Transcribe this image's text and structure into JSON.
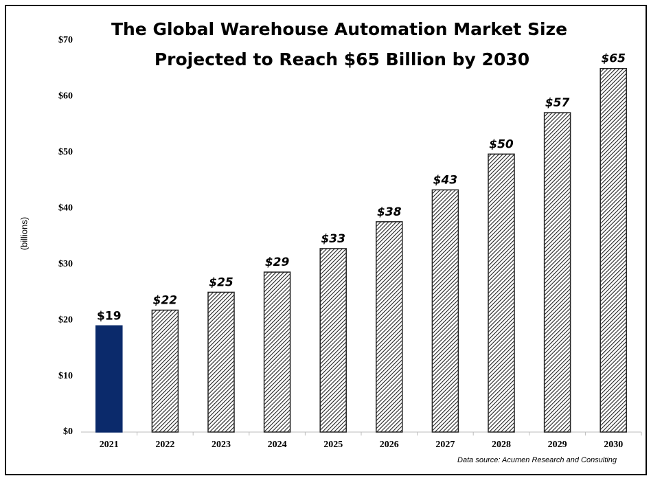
{
  "chart_data": {
    "type": "bar",
    "title": [
      "The Global Warehouse Automation Market Size",
      "Projected to Reach $65 Billion by 2030"
    ],
    "y_label": "(billions)",
    "source": "Data source:  Acumen Research and Consulting",
    "categories": [
      "2021",
      "2022",
      "2023",
      "2024",
      "2025",
      "2026",
      "2027",
      "2028",
      "2029",
      "2030"
    ],
    "values": [
      19,
      21.8,
      25,
      28.6,
      32.8,
      37.6,
      43.3,
      49.7,
      57.1,
      65
    ],
    "value_labels": [
      "$19",
      "$22",
      "$25",
      "$29",
      "$33",
      "$38",
      "$43",
      "$50",
      "$57",
      "$65"
    ],
    "bar_colors": [
      "#0b2a6b",
      "#222222",
      "#222222",
      "#222222",
      "#222222",
      "#222222",
      "#222222",
      "#222222",
      "#222222",
      "#222222"
    ],
    "hatched": [
      false,
      true,
      true,
      true,
      true,
      true,
      true,
      true,
      true,
      true
    ],
    "ylim": [
      0,
      70
    ],
    "yticks": [
      {
        "value": 0,
        "label": "$0"
      },
      {
        "value": 10,
        "label": "$10"
      },
      {
        "value": 20,
        "label": "$20"
      },
      {
        "value": 30,
        "label": "$30"
      },
      {
        "value": 40,
        "label": "$40"
      },
      {
        "value": 50,
        "label": "$50"
      },
      {
        "value": 60,
        "label": "$60"
      },
      {
        "value": 70,
        "label": "$70"
      }
    ],
    "grid": false
  }
}
